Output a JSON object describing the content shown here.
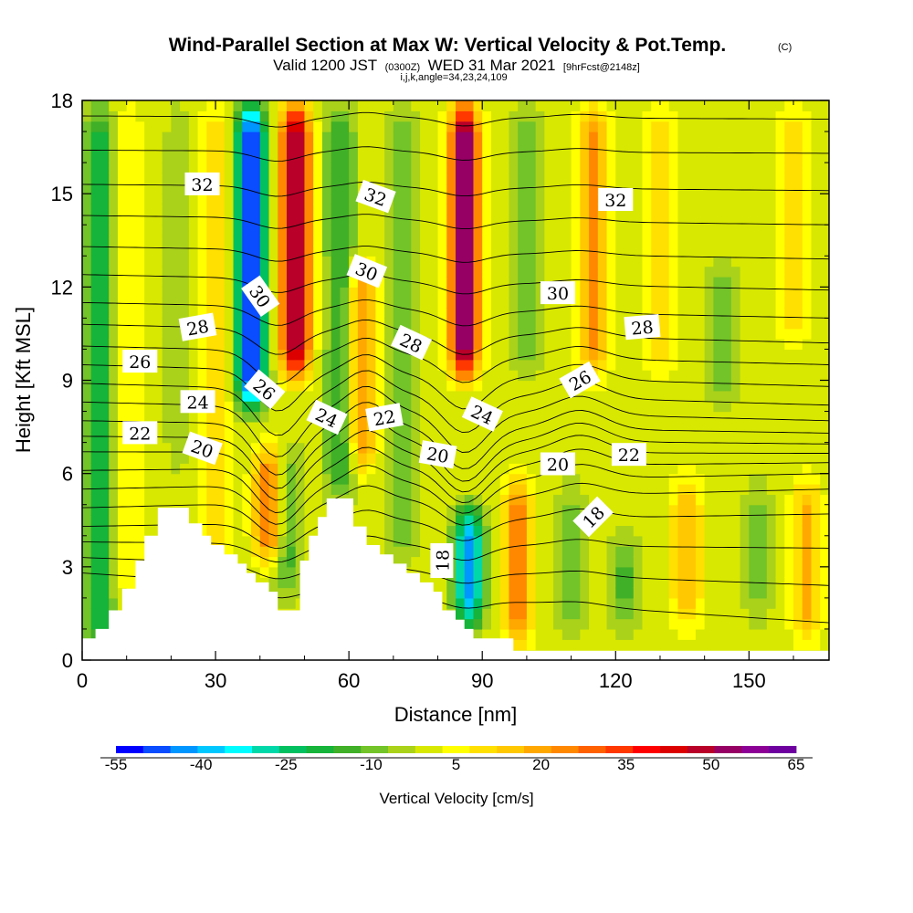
{
  "chart_data": {
    "type": "heatmap",
    "title": "Wind-Parallel Section at Max W: Vertical Velocity & Pot.Temp.",
    "title_mark": "(C)",
    "subtitle_prefix": "Valid 1200 JST",
    "subtitle_utc": "(0300Z)",
    "subtitle_date": "WED 31 Mar 2021",
    "subtitle_fcst": "[9hrFcst@2148z]",
    "subtitle2": "i,j,k,angle=34,23,24,109",
    "xlabel": "Distance [nm]",
    "ylabel": "Height [Kft MSL]",
    "xlim": [
      0,
      168
    ],
    "ylim": [
      0,
      18
    ],
    "x_ticks": [
      "0",
      "30",
      "60",
      "90",
      "120",
      "150"
    ],
    "y_ticks": [
      "0",
      "3",
      "6",
      "9",
      "12",
      "15",
      "18"
    ],
    "colorbar": {
      "title": "Vertical Velocity [cm/s]",
      "labels": [
        "-55",
        "-40",
        "-25",
        "-10",
        "5",
        "20",
        "35",
        "50",
        "65"
      ],
      "colors": [
        "#0000ff",
        "#0a4cff",
        "#0096ff",
        "#00c8ff",
        "#00fcff",
        "#00d8aa",
        "#00c060",
        "#16b43a",
        "#40b028",
        "#72c428",
        "#aad21a",
        "#d8e800",
        "#ffff00",
        "#ffe000",
        "#ffc800",
        "#ffa800",
        "#ff8800",
        "#ff6000",
        "#ff3800",
        "#ff0000",
        "#dc0000",
        "#b80028",
        "#960064",
        "#8c0096",
        "#6e00a0"
      ]
    },
    "vertical_velocity": {
      "background": 0,
      "features": [
        {
          "x": 4,
          "y0": 0,
          "y1": 18,
          "w": -20
        },
        {
          "x": 10,
          "y0": 2,
          "y1": 18,
          "w": 8
        },
        {
          "x": 22,
          "y0": 6,
          "y1": 18,
          "w": -6
        },
        {
          "x": 30,
          "y0": 3,
          "y1": 18,
          "w": 12
        },
        {
          "x": 38,
          "y0": 8,
          "y1": 18,
          "w": -55
        },
        {
          "x": 42,
          "y0": 3,
          "y1": 7,
          "w": 30
        },
        {
          "x": 48,
          "y0": 9,
          "y1": 18,
          "w": 55
        },
        {
          "x": 46,
          "y0": 2,
          "y1": 7,
          "w": -15
        },
        {
          "x": 58,
          "y0": 5,
          "y1": 18,
          "w": -18
        },
        {
          "x": 63,
          "y0": 6,
          "y1": 13,
          "w": 22
        },
        {
          "x": 72,
          "y0": 3,
          "y1": 18,
          "w": -12
        },
        {
          "x": 86,
          "y0": 9,
          "y1": 18,
          "w": 60
        },
        {
          "x": 87,
          "y0": 1,
          "y1": 5,
          "w": -45
        },
        {
          "x": 98,
          "y0": 0.5,
          "y1": 6,
          "w": 28
        },
        {
          "x": 100,
          "y0": 9,
          "y1": 18,
          "w": -10
        },
        {
          "x": 115,
          "y0": 9,
          "y1": 18,
          "w": 24
        },
        {
          "x": 110,
          "y0": 0.5,
          "y1": 6,
          "w": -8
        },
        {
          "x": 122,
          "y0": 1,
          "y1": 4,
          "w": -15
        },
        {
          "x": 130,
          "y0": 9,
          "y1": 18,
          "w": 10
        },
        {
          "x": 136,
          "y0": 1,
          "y1": 6,
          "w": 18
        },
        {
          "x": 144,
          "y0": 8,
          "y1": 13,
          "w": -10
        },
        {
          "x": 152,
          "y0": 1,
          "y1": 6,
          "w": -8
        },
        {
          "x": 160,
          "y0": 10,
          "y1": 18,
          "w": 10
        },
        {
          "x": 163,
          "y0": 0.5,
          "y1": 6,
          "w": 18
        }
      ]
    },
    "terrain_kft": [
      [
        0,
        0.7
      ],
      [
        3,
        0.7
      ],
      [
        3,
        1
      ],
      [
        6,
        1
      ],
      [
        6,
        1.6
      ],
      [
        9,
        1.6
      ],
      [
        9,
        2.3
      ],
      [
        12,
        2.3
      ],
      [
        12,
        3.2
      ],
      [
        14,
        3.2
      ],
      [
        14,
        4
      ],
      [
        17,
        4
      ],
      [
        17,
        4.9
      ],
      [
        24,
        4.9
      ],
      [
        24,
        4.4
      ],
      [
        27,
        4.4
      ],
      [
        27,
        4
      ],
      [
        29,
        4
      ],
      [
        29,
        3.7
      ],
      [
        32,
        3.7
      ],
      [
        32,
        3.4
      ],
      [
        35,
        3.4
      ],
      [
        35,
        3.1
      ],
      [
        37,
        3.1
      ],
      [
        37,
        2.8
      ],
      [
        39,
        2.8
      ],
      [
        39,
        2.5
      ],
      [
        42,
        2.5
      ],
      [
        42,
        2.2
      ],
      [
        44,
        2.2
      ],
      [
        44,
        1.6
      ],
      [
        49,
        1.6
      ],
      [
        49,
        3.2
      ],
      [
        51,
        3.2
      ],
      [
        51,
        4
      ],
      [
        53,
        4
      ],
      [
        53,
        4.6
      ],
      [
        55,
        4.6
      ],
      [
        55,
        5.2
      ],
      [
        61,
        5.2
      ],
      [
        61,
        4.3
      ],
      [
        64,
        4.3
      ],
      [
        64,
        3.7
      ],
      [
        67,
        3.7
      ],
      [
        67,
        3.4
      ],
      [
        70,
        3.4
      ],
      [
        70,
        3.1
      ],
      [
        73,
        3.1
      ],
      [
        73,
        2.8
      ],
      [
        76,
        2.8
      ],
      [
        76,
        2.5
      ],
      [
        79,
        2.5
      ],
      [
        79,
        2.2
      ],
      [
        81,
        2.2
      ],
      [
        81,
        1.6
      ],
      [
        84,
        1.6
      ],
      [
        84,
        1.3
      ],
      [
        86,
        1.3
      ],
      [
        86,
        1
      ],
      [
        88,
        1
      ],
      [
        88,
        0.7
      ],
      [
        97,
        0.7
      ],
      [
        97,
        0.3
      ],
      [
        168,
        0.3
      ]
    ],
    "theta_levels": [
      {
        "y0": 2.8,
        "y1": 1.2,
        "label": ""
      },
      {
        "y0": 3.3,
        "y1": 2.4,
        "label": "18"
      },
      {
        "y0": 3.8,
        "y1": 3.6,
        "label": ""
      },
      {
        "y0": 4.3,
        "y1": 4.7,
        "label": ""
      },
      {
        "y0": 4.9,
        "y1": 5.5,
        "label": ""
      },
      {
        "y0": 5.5,
        "y1": 6.0,
        "label": "20"
      },
      {
        "y0": 6.1,
        "y1": 6.35,
        "label": ""
      },
      {
        "y0": 6.7,
        "y1": 6.65,
        "label": "22"
      },
      {
        "y0": 7.2,
        "y1": 6.95,
        "label": ""
      },
      {
        "y0": 7.7,
        "y1": 7.3,
        "label": "24"
      },
      {
        "y0": 8.3,
        "y1": 7.7,
        "label": ""
      },
      {
        "y0": 8.9,
        "y1": 8.2,
        "label": "26"
      },
      {
        "y0": 9.5,
        "y1": 8.8,
        "label": ""
      },
      {
        "y0": 10.1,
        "y1": 9.5,
        "label": "28"
      },
      {
        "y0": 10.8,
        "y1": 10.2,
        "label": ""
      },
      {
        "y0": 11.5,
        "y1": 11.0,
        "label": "30"
      },
      {
        "y0": 12.4,
        "y1": 11.9,
        "label": ""
      },
      {
        "y0": 13.3,
        "y1": 12.9,
        "label": ""
      },
      {
        "y0": 14.3,
        "y1": 14.0,
        "label": "32"
      },
      {
        "y0": 15.3,
        "y1": 15.1,
        "label": ""
      },
      {
        "y0": 16.4,
        "y1": 16.3,
        "label": ""
      },
      {
        "y0": 17.5,
        "y1": 17.4,
        "label": ""
      }
    ],
    "contour_labels": [
      {
        "text": "32",
        "x": 27,
        "y": 15.3,
        "angle": 0
      },
      {
        "text": "32",
        "x": 66,
        "y": 14.9,
        "angle": 20
      },
      {
        "text": "32",
        "x": 120,
        "y": 14.8,
        "angle": 0
      },
      {
        "text": "30",
        "x": 64,
        "y": 12.5,
        "angle": 22
      },
      {
        "text": "30",
        "x": 40,
        "y": 11.7,
        "angle": 55
      },
      {
        "text": "30",
        "x": 107,
        "y": 11.8,
        "angle": 0
      },
      {
        "text": "28",
        "x": 26,
        "y": 10.7,
        "angle": -10
      },
      {
        "text": "28",
        "x": 74,
        "y": 10.2,
        "angle": 25
      },
      {
        "text": "28",
        "x": 126,
        "y": 10.7,
        "angle": -5
      },
      {
        "text": "26",
        "x": 13,
        "y": 9.6,
        "angle": 0
      },
      {
        "text": "26",
        "x": 41,
        "y": 8.7,
        "angle": 40
      },
      {
        "text": "26",
        "x": 112,
        "y": 9.0,
        "angle": -30
      },
      {
        "text": "24",
        "x": 26,
        "y": 8.3,
        "angle": 0
      },
      {
        "text": "24",
        "x": 55,
        "y": 7.8,
        "angle": 25
      },
      {
        "text": "24",
        "x": 90,
        "y": 7.9,
        "angle": 25
      },
      {
        "text": "22",
        "x": 13,
        "y": 7.3,
        "angle": 0
      },
      {
        "text": "22",
        "x": 68,
        "y": 7.8,
        "angle": -10
      },
      {
        "text": "22",
        "x": 123,
        "y": 6.6,
        "angle": 0
      },
      {
        "text": "20",
        "x": 27,
        "y": 6.8,
        "angle": 20
      },
      {
        "text": "20",
        "x": 80,
        "y": 6.6,
        "angle": 10
      },
      {
        "text": "20",
        "x": 107,
        "y": 6.3,
        "angle": 0
      },
      {
        "text": "18",
        "x": 81,
        "y": 3.2,
        "angle": -90
      },
      {
        "text": "18",
        "x": 115,
        "y": 4.6,
        "angle": -45
      }
    ]
  }
}
